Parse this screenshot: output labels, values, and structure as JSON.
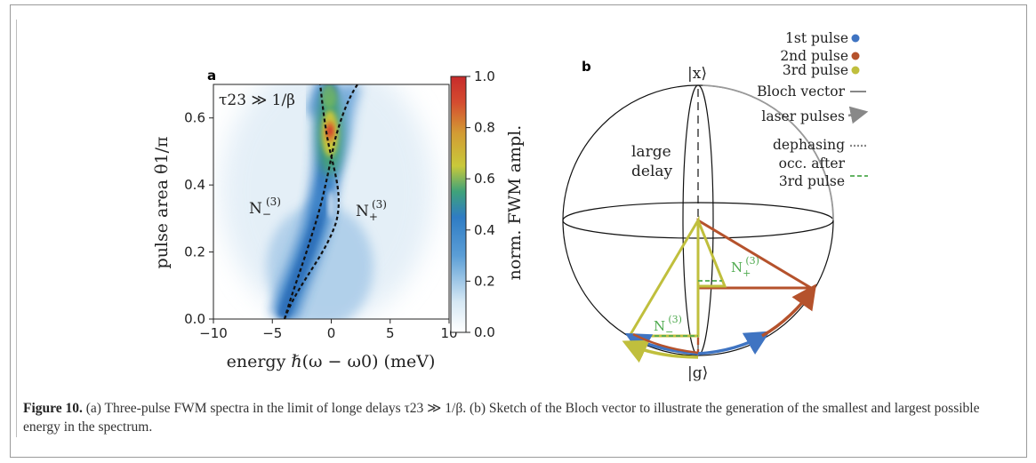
{
  "figure": {
    "panel_a_label": "a",
    "panel_b_label": "b",
    "caption": {
      "label": "Figure 10.",
      "text": " (a) Three-pulse FWM spectra in the limit of longe delays τ23 ≫ 1/β. (b) Sketch of the Bloch vector to illustrate the generation of the smallest and largest possible energy in the spectrum."
    }
  },
  "chart_data": [
    {
      "type": "heatmap",
      "title": "",
      "annotation": "τ23 ≫ 1/β",
      "xlabel": "energy ℏ(ω − ω0) (meV)",
      "ylabel": "pulse area θ1/π",
      "xlim": [
        -10,
        10
      ],
      "ylim": [
        0.0,
        0.7
      ],
      "xticks": [
        -10,
        -5,
        0,
        5,
        10
      ],
      "xtick_labels": [
        "−10",
        "−5",
        "0",
        "5",
        "10"
      ],
      "yticks": [
        0.0,
        0.2,
        0.4,
        0.6
      ],
      "ytick_labels": [
        "0.0",
        "0.2",
        "0.4",
        "0.6"
      ],
      "colorbar": {
        "label": "norm. FWM ampl.",
        "range": [
          0.0,
          1.0
        ],
        "ticks": [
          "0.0",
          "0.2",
          "0.4",
          "0.6",
          "0.8",
          "1.0"
        ],
        "colormap": "blue-green-yellow-red"
      },
      "region_labels": {
        "minus": "N−(3)",
        "plus": "N+(3)"
      },
      "dashed_curves": [
        {
          "name": "N−(3)",
          "x": [
            -4.0,
            -3.6,
            -2.8,
            -1.8,
            -0.7,
            0.3,
            1.2,
            2.2
          ],
          "y": [
            0.0,
            0.1,
            0.2,
            0.3,
            0.4,
            0.5,
            0.6,
            0.7
          ]
        },
        {
          "name": "N+(3)",
          "x": [
            -4.0,
            -3.0,
            -1.5,
            -0.2,
            0.7,
            0.6,
            -0.3,
            -1.0
          ],
          "y": [
            0.0,
            0.1,
            0.2,
            0.3,
            0.4,
            0.5,
            0.6,
            0.7
          ]
        }
      ],
      "intensity_peak": {
        "x": 0.0,
        "y": 0.56,
        "value": 1.0
      }
    }
  ],
  "bloch": {
    "top_state": "|x⟩",
    "bottom_state": "|g⟩",
    "large_delay_line1": "large",
    "large_delay_line2": "delay",
    "n_plus": "N+(3)",
    "n_minus": "N−(3)",
    "legend": {
      "pulse1": "1st pulse",
      "pulse2": "2nd pulse",
      "pulse3": "3rd pulse",
      "bloch_vector": "Bloch vector",
      "laser_pulses": "laser pulses",
      "dephasing": "dephasing",
      "occ_line1": "occ. after",
      "occ_line2": "3rd pulse"
    },
    "colors": {
      "pulse1": "#3f74c2",
      "pulse2": "#b5522c",
      "pulse3": "#c0bf3d",
      "occ": "#4faa4f",
      "gray": "#888888"
    }
  }
}
